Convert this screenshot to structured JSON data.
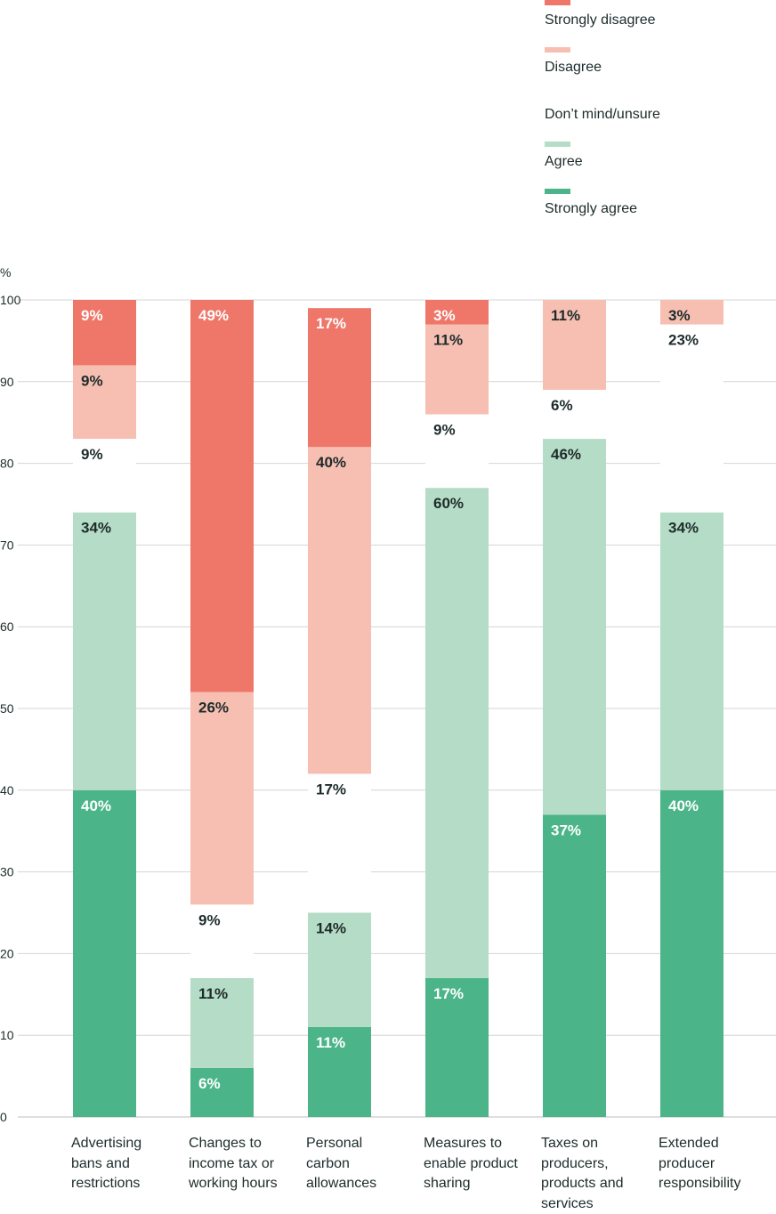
{
  "chart_data": {
    "type": "bar",
    "stacked": true,
    "ylabel": "%",
    "ylim": [
      0,
      100
    ],
    "yticks": [
      0,
      10,
      20,
      30,
      40,
      50,
      60,
      70,
      80,
      90,
      100
    ],
    "grid": true,
    "legend_position": "top-right",
    "categories": [
      "Advertising bans and restrictions",
      "Changes to income tax or working hours",
      "Personal carbon allowances",
      "Measures to enable product sharing",
      "Taxes on producers, products and services",
      "Extended producer responsibility"
    ],
    "series": [
      {
        "name": "Strongly agree",
        "color": "#4bb489",
        "values": [
          40,
          6,
          11,
          17,
          37,
          40
        ],
        "labels": [
          "40%",
          "6%",
          "11%",
          "17%",
          "37%",
          "40%"
        ],
        "label_color": "#ffffff"
      },
      {
        "name": "Agree",
        "color": "#b5dcc6",
        "values": [
          34,
          11,
          14,
          60,
          46,
          34
        ],
        "labels": [
          "34%",
          "11%",
          "14%",
          "60%",
          "46%",
          "34%"
        ],
        "label_color": "#1d2b2b"
      },
      {
        "name": "Don’t mind/unsure",
        "color": "#ffffff",
        "values": [
          9,
          9,
          17,
          9,
          6,
          23
        ],
        "labels": [
          "9%",
          "9%",
          "17%",
          "9%",
          "6%",
          "23%"
        ],
        "label_color": "#1d2b2b"
      },
      {
        "name": "Disagree",
        "color": "#f7bfb2",
        "values": [
          9,
          26,
          40,
          11,
          11,
          3
        ],
        "labels": [
          "9%",
          "26%",
          "40%",
          "11%",
          "11%",
          "3%"
        ],
        "label_color": "#1d2b2b"
      },
      {
        "name": "Strongly disagree",
        "color": "#ee776a",
        "values": [
          9,
          49,
          17,
          3,
          0,
          0
        ],
        "labels": [
          "9%",
          "49%",
          "17%",
          "3%",
          "",
          ""
        ],
        "label_color": "#ffffff"
      }
    ]
  },
  "legend": [
    {
      "label": "Strongly disagree",
      "color": "#ee776a"
    },
    {
      "label": "Disagree",
      "color": "#f7bfb2"
    },
    {
      "label": "Don’t mind/unsure",
      "color": "#ffffff"
    },
    {
      "label": "Agree",
      "color": "#b5dcc6"
    },
    {
      "label": "Strongly agree",
      "color": "#4bb489"
    }
  ],
  "axis": {
    "unit": "%"
  },
  "category_labels": [
    [
      "Advertising",
      "bans and",
      "restrictions"
    ],
    [
      "Changes to",
      "income tax or",
      "working hours"
    ],
    [
      "Personal",
      "carbon",
      "allowances"
    ],
    [
      "Measures to",
      "enable product",
      "sharing"
    ],
    [
      "Taxes on",
      "producers,",
      "products and",
      "services"
    ],
    [
      "Extended",
      "producer",
      "responsibility"
    ]
  ]
}
